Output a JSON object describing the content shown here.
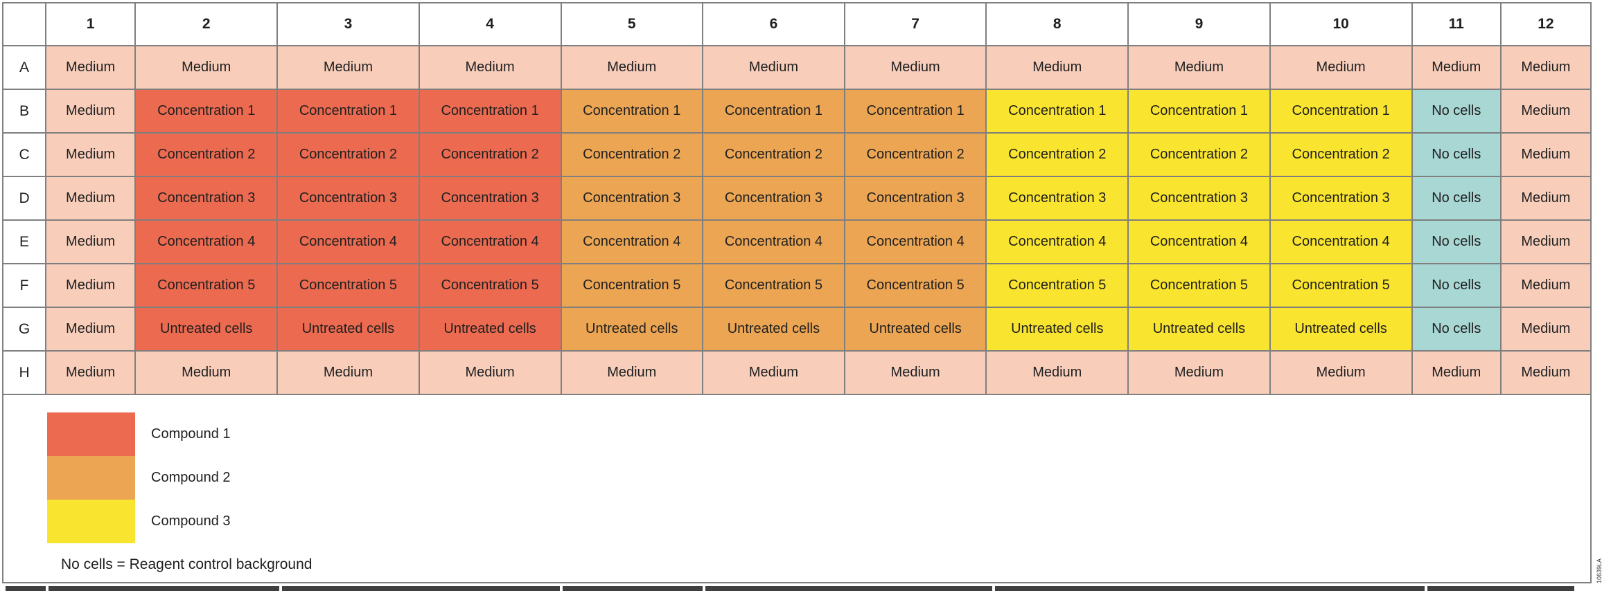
{
  "plate": {
    "column_headers": [
      "1",
      "2",
      "3",
      "4",
      "5",
      "6",
      "7",
      "8",
      "9",
      "10",
      "11",
      "12"
    ],
    "rows": [
      {
        "label": "A",
        "cells": [
          {
            "text": "Medium",
            "type": "medium"
          },
          {
            "text": "Medium",
            "type": "medium"
          },
          {
            "text": "Medium",
            "type": "medium"
          },
          {
            "text": "Medium",
            "type": "medium"
          },
          {
            "text": "Medium",
            "type": "medium"
          },
          {
            "text": "Medium",
            "type": "medium"
          },
          {
            "text": "Medium",
            "type": "medium"
          },
          {
            "text": "Medium",
            "type": "medium"
          },
          {
            "text": "Medium",
            "type": "medium"
          },
          {
            "text": "Medium",
            "type": "medium"
          },
          {
            "text": "Medium",
            "type": "medium"
          },
          {
            "text": "Medium",
            "type": "medium"
          }
        ]
      },
      {
        "label": "B",
        "cells": [
          {
            "text": "Medium",
            "type": "medium"
          },
          {
            "text": "Concentration 1",
            "type": "compound1"
          },
          {
            "text": "Concentration 1",
            "type": "compound1"
          },
          {
            "text": "Concentration 1",
            "type": "compound1"
          },
          {
            "text": "Concentration 1",
            "type": "compound2"
          },
          {
            "text": "Concentration 1",
            "type": "compound2"
          },
          {
            "text": "Concentration 1",
            "type": "compound2"
          },
          {
            "text": "Concentration 1",
            "type": "compound3"
          },
          {
            "text": "Concentration 1",
            "type": "compound3"
          },
          {
            "text": "Concentration 1",
            "type": "compound3"
          },
          {
            "text": "No cells",
            "type": "nocells"
          },
          {
            "text": "Medium",
            "type": "medium"
          }
        ]
      },
      {
        "label": "C",
        "cells": [
          {
            "text": "Medium",
            "type": "medium"
          },
          {
            "text": "Concentration 2",
            "type": "compound1"
          },
          {
            "text": "Concentration 2",
            "type": "compound1"
          },
          {
            "text": "Concentration 2",
            "type": "compound1"
          },
          {
            "text": "Concentration 2",
            "type": "compound2"
          },
          {
            "text": "Concentration 2",
            "type": "compound2"
          },
          {
            "text": "Concentration 2",
            "type": "compound2"
          },
          {
            "text": "Concentration 2",
            "type": "compound3"
          },
          {
            "text": "Concentration 2",
            "type": "compound3"
          },
          {
            "text": "Concentration 2",
            "type": "compound3"
          },
          {
            "text": "No cells",
            "type": "nocells"
          },
          {
            "text": "Medium",
            "type": "medium"
          }
        ]
      },
      {
        "label": "D",
        "cells": [
          {
            "text": "Medium",
            "type": "medium"
          },
          {
            "text": "Concentration 3",
            "type": "compound1"
          },
          {
            "text": "Concentration 3",
            "type": "compound1"
          },
          {
            "text": "Concentration 3",
            "type": "compound1"
          },
          {
            "text": "Concentration 3",
            "type": "compound2"
          },
          {
            "text": "Concentration 3",
            "type": "compound2"
          },
          {
            "text": "Concentration 3",
            "type": "compound2"
          },
          {
            "text": "Concentration 3",
            "type": "compound3"
          },
          {
            "text": "Concentration 3",
            "type": "compound3"
          },
          {
            "text": "Concentration 3",
            "type": "compound3"
          },
          {
            "text": "No cells",
            "type": "nocells"
          },
          {
            "text": "Medium",
            "type": "medium"
          }
        ]
      },
      {
        "label": "E",
        "cells": [
          {
            "text": "Medium",
            "type": "medium"
          },
          {
            "text": "Concentration 4",
            "type": "compound1"
          },
          {
            "text": "Concentration 4",
            "type": "compound1"
          },
          {
            "text": "Concentration 4",
            "type": "compound1"
          },
          {
            "text": "Concentration 4",
            "type": "compound2"
          },
          {
            "text": "Concentration 4",
            "type": "compound2"
          },
          {
            "text": "Concentration 4",
            "type": "compound2"
          },
          {
            "text": "Concentration 4",
            "type": "compound3"
          },
          {
            "text": "Concentration 4",
            "type": "compound3"
          },
          {
            "text": "Concentration 4",
            "type": "compound3"
          },
          {
            "text": "No cells",
            "type": "nocells"
          },
          {
            "text": "Medium",
            "type": "medium"
          }
        ]
      },
      {
        "label": "F",
        "cells": [
          {
            "text": "Medium",
            "type": "medium"
          },
          {
            "text": "Concentration 5",
            "type": "compound1"
          },
          {
            "text": "Concentration 5",
            "type": "compound1"
          },
          {
            "text": "Concentration 5",
            "type": "compound1"
          },
          {
            "text": "Concentration 5",
            "type": "compound2"
          },
          {
            "text": "Concentration 5",
            "type": "compound2"
          },
          {
            "text": "Concentration 5",
            "type": "compound2"
          },
          {
            "text": "Concentration 5",
            "type": "compound3"
          },
          {
            "text": "Concentration 5",
            "type": "compound3"
          },
          {
            "text": "Concentration 5",
            "type": "compound3"
          },
          {
            "text": "No cells",
            "type": "nocells"
          },
          {
            "text": "Medium",
            "type": "medium"
          }
        ]
      },
      {
        "label": "G",
        "cells": [
          {
            "text": "Medium",
            "type": "medium"
          },
          {
            "text": "Untreated cells",
            "type": "compound1"
          },
          {
            "text": "Untreated cells",
            "type": "compound1"
          },
          {
            "text": "Untreated cells",
            "type": "compound1"
          },
          {
            "text": "Untreated cells",
            "type": "compound2"
          },
          {
            "text": "Untreated cells",
            "type": "compound2"
          },
          {
            "text": "Untreated cells",
            "type": "compound2"
          },
          {
            "text": "Untreated cells",
            "type": "compound3"
          },
          {
            "text": "Untreated cells",
            "type": "compound3"
          },
          {
            "text": "Untreated cells",
            "type": "compound3"
          },
          {
            "text": "No cells",
            "type": "nocells"
          },
          {
            "text": "Medium",
            "type": "medium"
          }
        ]
      },
      {
        "label": "H",
        "cells": [
          {
            "text": "Medium",
            "type": "medium"
          },
          {
            "text": "Medium",
            "type": "medium"
          },
          {
            "text": "Medium",
            "type": "medium"
          },
          {
            "text": "Medium",
            "type": "medium"
          },
          {
            "text": "Medium",
            "type": "medium"
          },
          {
            "text": "Medium",
            "type": "medium"
          },
          {
            "text": "Medium",
            "type": "medium"
          },
          {
            "text": "Medium",
            "type": "medium"
          },
          {
            "text": "Medium",
            "type": "medium"
          },
          {
            "text": "Medium",
            "type": "medium"
          },
          {
            "text": "Medium",
            "type": "medium"
          },
          {
            "text": "Medium",
            "type": "medium"
          }
        ]
      }
    ]
  },
  "legend": {
    "items": [
      {
        "label": "Compound 1",
        "type": "compound1"
      },
      {
        "label": "Compound 2",
        "type": "compound2"
      },
      {
        "label": "Compound 3",
        "type": "compound3"
      }
    ]
  },
  "note": "No cells = Reagent control background",
  "side_label": "10639LA",
  "colors": {
    "medium": "#F8CEBB",
    "compound1": "#EB6A50",
    "compound2": "#ECA553",
    "compound3": "#F9E42F",
    "nocells": "#A8D7D4",
    "grid": "#7F7F7F",
    "bottom_bar": "#3F3F3F"
  }
}
